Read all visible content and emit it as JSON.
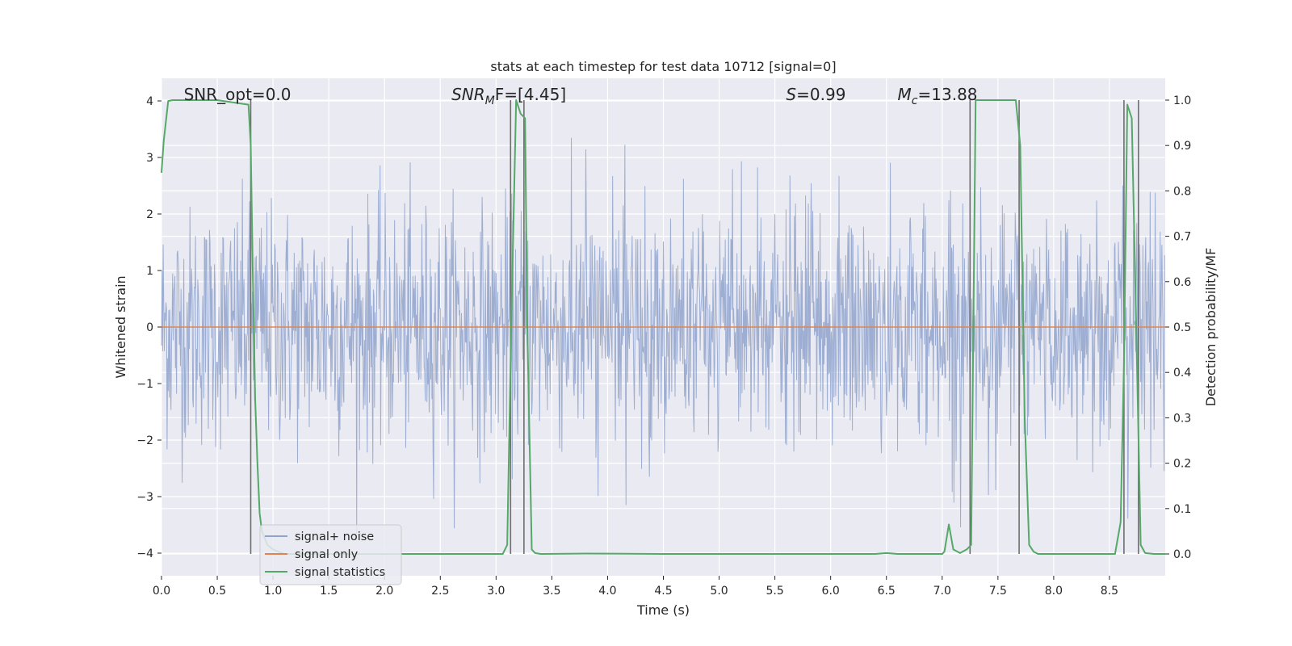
{
  "chart_data": {
    "type": "line",
    "title": "stats at each timestep for test data 10712 [signal=0]",
    "xlabel": "Time (s)",
    "ylabel": "Whitened strain",
    "ylabel_right": "Detection probability/MF",
    "xlim": [
      0.0,
      9.0
    ],
    "ylim": [
      -4.4,
      4.4
    ],
    "ylim_right": [
      -0.048,
      1.048
    ],
    "x_ticks": [
      "0.0",
      "0.5",
      "1.0",
      "1.5",
      "2.0",
      "2.5",
      "3.0",
      "3.5",
      "4.0",
      "4.5",
      "5.0",
      "5.5",
      "6.0",
      "6.5",
      "7.0",
      "7.5",
      "8.0",
      "8.5"
    ],
    "y_ticks": [
      "−4",
      "−3",
      "−2",
      "−1",
      "0",
      "1",
      "2",
      "3",
      "4"
    ],
    "y_ticks_right": [
      "0.0",
      "0.1",
      "0.2",
      "0.3",
      "0.4",
      "0.5",
      "0.6",
      "0.7",
      "0.8",
      "0.9",
      "1.0"
    ],
    "grid": true,
    "legend_position": "bottom-left",
    "annotations": [
      {
        "pre": "SNR_opt=0.0",
        "sub": "",
        "post": "",
        "x": 0.2
      },
      {
        "pre": "SNR",
        "sub": "M",
        "post": "F=[4.45]",
        "x": 2.6,
        "italic": true
      },
      {
        "pre": "S",
        "sub": "",
        "post": "=0.99",
        "x": 5.6,
        "italic": true
      },
      {
        "pre": "M",
        "sub": "c",
        "post": "=13.88",
        "x": 6.6,
        "italic": true
      }
    ],
    "series": [
      {
        "name": "signal+ noise",
        "color": "#8fa3cc",
        "description": "whitened strain noise fluctuating mostly between -1.8 and 1.8, spikes up to about 3.4 and down to about -3.8",
        "sample_interval": 0.005,
        "envelope": {
          "core": 1.6,
          "min_spike": -3.8,
          "max_spike": 3.4
        }
      },
      {
        "name": "signal only",
        "color": "#dd8452",
        "x": [
          0.0,
          9.0
        ],
        "y": [
          0.0,
          0.0
        ]
      },
      {
        "name": "signal statistics",
        "color": "#55a868",
        "axis": "right",
        "x": [
          0.0,
          0.02,
          0.06,
          0.1,
          0.15,
          0.5,
          0.78,
          0.8,
          0.82,
          0.84,
          0.86,
          0.88,
          0.9,
          0.95,
          1.0,
          1.1,
          1.5,
          2.0,
          2.5,
          3.0,
          3.06,
          3.1,
          3.14,
          3.18,
          3.22,
          3.26,
          3.28,
          3.32,
          3.35,
          3.4,
          3.8,
          4.5,
          5.0,
          6.0,
          6.4,
          6.5,
          6.6,
          7.0,
          7.02,
          7.06,
          7.1,
          7.16,
          7.22,
          7.26,
          7.3,
          7.34,
          7.5,
          7.66,
          7.7,
          7.74,
          7.78,
          7.82,
          7.86,
          7.9,
          8.0,
          8.3,
          8.55,
          8.6,
          8.63,
          8.66,
          8.7,
          8.74,
          8.78,
          8.82,
          8.9,
          9.0
        ],
        "y": [
          0.84,
          0.91,
          0.998,
          1.0,
          1.0,
          1.0,
          0.99,
          0.9,
          0.6,
          0.34,
          0.2,
          0.09,
          0.05,
          0.02,
          0.01,
          0.0,
          0.0,
          0.0,
          0.0,
          0.0,
          0.0,
          0.02,
          0.55,
          1.0,
          0.97,
          0.96,
          0.5,
          0.01,
          0.002,
          0.0,
          0.001,
          0.0,
          0.0,
          0.0,
          0.0,
          0.002,
          0.0,
          0.0,
          0.005,
          0.065,
          0.01,
          0.002,
          0.01,
          0.02,
          1.0,
          1.0,
          1.0,
          1.0,
          0.9,
          0.3,
          0.02,
          0.005,
          0.0,
          0.0,
          0.0,
          0.0,
          0.0,
          0.07,
          0.42,
          0.99,
          0.96,
          0.5,
          0.02,
          0.002,
          0.0,
          0.0
        ]
      }
    ],
    "vlines": [
      0.8,
      3.13,
      3.25,
      7.25,
      7.69,
      8.63,
      8.76
    ]
  }
}
